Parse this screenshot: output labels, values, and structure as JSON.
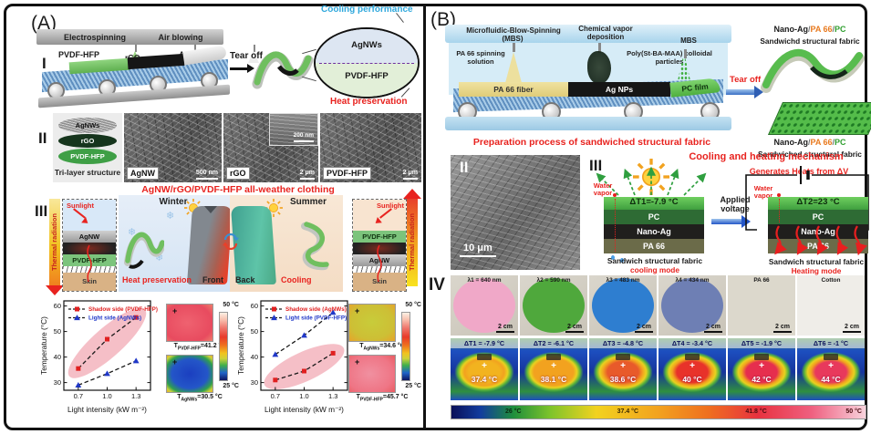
{
  "panelA": {
    "label": "(A)",
    "sec1": {
      "roman": "I",
      "machine": {
        "electrospinning": "Electrospinning",
        "air_blowing": "Air blowing",
        "pvdf": "PVDF-HFP",
        "rgo": "rGO",
        "agnws": "AgNWs"
      },
      "tear_off": "Tear off",
      "callout": {
        "cooling": "Cooling performance",
        "top": "AgNWs",
        "bottom": "PVDF-HFP",
        "heat": "Heat preservation"
      }
    },
    "sec2": {
      "roman": "II",
      "trilayer": {
        "layers": [
          "AgNWs",
          "rGO",
          "PVDF-HFP"
        ],
        "caption": "Tri-layer structure"
      },
      "sems": [
        {
          "label": "AgNW",
          "scale": "500 nm"
        },
        {
          "label": "rGO",
          "scale": "2 μm",
          "inset": "200 nm"
        },
        {
          "label": "PVDF-HFP",
          "scale": "2 μm"
        }
      ],
      "caption": "AgNW/rGO/PVDF-HFP all-weather clothing"
    },
    "sec3": {
      "roman": "III",
      "left": {
        "thermal": "Thermal radiation",
        "sunlight": "Sunlight",
        "layer1": "AgNW",
        "layer2": "PVDF-HFP",
        "skin": "Skin"
      },
      "winter": {
        "title": "Winter",
        "caption": "Heat preservation",
        "side": "Front"
      },
      "summer": {
        "title": "Summer",
        "side": "Back",
        "caption": "Cooling"
      },
      "right": {
        "thermal": "Thermal radiation",
        "sunlight": "Sunlight",
        "layer1": "PVDF-HFP",
        "layer2": "AgNW",
        "skin": "Skin"
      }
    },
    "thermal_sets": [
      {
        "top": {
          "prefix": "T",
          "sub": "PVDF-HFP",
          "value": "=41.2 °C"
        },
        "bottom": {
          "prefix": "T",
          "sub": "AgNWs",
          "value": "=30.5 °C"
        },
        "scale_top": "50 °C",
        "scale_bottom": "25 °C"
      },
      {
        "top": {
          "prefix": "T",
          "sub": "AgNWs",
          "value": "=34.6 °C"
        },
        "bottom": {
          "prefix": "T",
          "sub": "PVDF-HFP",
          "value": "=45.7 °C"
        },
        "scale_top": "50 °C",
        "scale_bottom": "25 °C"
      }
    ]
  },
  "panelB": {
    "label": "(B)",
    "sec1": {
      "roman": "I",
      "mbs_title": "Microfluidic-Blow-Spinning",
      "mbs_sub": "(MBS)",
      "cvd": "Chemical vapor deposition",
      "mbs2": "MBS",
      "pa66_solution": "PA 66 spinning solution",
      "colloid": "Poly(St-BA-MAA) colloidal particles",
      "belt": [
        "PA 66 fiber",
        "Ag NPs",
        "PC film"
      ],
      "tear_off": "Tear off",
      "fabric": {
        "nano": "Nano-Ag",
        "slash1": "/",
        "pa": "PA 66",
        "slash2": "/",
        "pc": "PC"
      },
      "fabric_top_caption": "Sandwichd structural fabric",
      "fabric_bottom_caption": "Sandwiched structural fabric",
      "caption": "Preparation process of sandwiched structural fabric"
    },
    "sec2": {
      "roman": "II",
      "scale": "10 μm"
    },
    "sec3": {
      "roman": "III",
      "title": "Cooling and heating mechanism",
      "generates": "Generates Heats from ΔV",
      "cool": {
        "water": "Water vapor",
        "dt": "ΔT1=-7.9 °C",
        "layers": [
          "PC",
          "Nano-Ag",
          "PA 66"
        ],
        "caption": "Sandwich structural fabric",
        "mode": "cooling mode"
      },
      "applied": "Applied voltage",
      "heat": {
        "water": "Water vapor",
        "dt": "ΔT2=23 °C",
        "layers": [
          "PC",
          "Nano-Ag",
          "PA 66"
        ],
        "caption": "Sandwich structural fabric",
        "mode": "Heating mode"
      }
    },
    "sec4": {
      "roman": "IV",
      "samples": [
        {
          "label": "λ1 = 640 nm",
          "scale": "2 cm",
          "color": "#f0a8c8"
        },
        {
          "label": "λ2 = 590 nm",
          "scale": "2 cm",
          "color": "#4fa83c"
        },
        {
          "label": "λ3 = 483 nm",
          "scale": "2 cm",
          "color": "#2e7ed0"
        },
        {
          "label": "λ4 = 434 nm",
          "scale": "2 cm",
          "color": "#6e7fb4"
        },
        {
          "label": "PA 66",
          "scale": "2 cm",
          "color": "#dcd8cc",
          "flat": true
        },
        {
          "label": "Cotton",
          "scale": "2 cm",
          "color": "#efede8",
          "flat": true
        }
      ],
      "thermals": [
        {
          "dt": "ΔT1 = -7.9 °C",
          "temp": "37.4 °C",
          "spot": "#f2b31f"
        },
        {
          "dt": "ΔT2 = -6.1 °C",
          "temp": "38.1 °C",
          "spot": "#f2a21f"
        },
        {
          "dt": "ΔT3 = -4.8 °C",
          "temp": "38.6 °C",
          "spot": "#e85a2a"
        },
        {
          "dt": "ΔT4 = -3.4 °C",
          "temp": "40 °C",
          "spot": "#e8322a"
        },
        {
          "dt": "ΔT5 = -1.9 °C",
          "temp": "42 °C",
          "spot": "#e62e4e"
        },
        {
          "dt": "ΔT6 = -1 °C",
          "temp": "44 °C",
          "spot": "#e8395c"
        }
      ],
      "colorbar": {
        "labels": [
          "26 °C",
          "37.4 °C",
          "41.8 °C",
          "50 °C"
        ]
      }
    }
  },
  "icons": {
    "snowflake": "❄",
    "crosshair": "+"
  },
  "chart_data": [
    {
      "type": "scatter",
      "x": [
        0.7,
        1.0,
        1.3
      ],
      "xticks": [
        "0.7",
        "1.0",
        "1.3"
      ],
      "yticks": [
        30,
        40,
        50,
        60
      ],
      "ylim": [
        27,
        62
      ],
      "xlabel": "Light intensity (kW m⁻²)",
      "ylabel": "Temperature (°C)",
      "series": [
        {
          "name": "Shadow side (PVDF-HFP)",
          "marker": "square",
          "color": "#e02020",
          "values": [
            35.5,
            47.0,
            55.5
          ],
          "highlighted": true
        },
        {
          "name": "Light side (AgNWs)",
          "marker": "triangle",
          "color": "#2038c8",
          "values": [
            29.0,
            33.5,
            38.5
          ],
          "highlighted": false
        }
      ],
      "line_color": "#1a1a1a",
      "highlight_color": "#f2aab4",
      "legend_position": "top-left",
      "grid": false
    },
    {
      "type": "scatter",
      "x": [
        0.7,
        1.0,
        1.3
      ],
      "xticks": [
        "0.7",
        "1.0",
        "1.3"
      ],
      "yticks": [
        30,
        40,
        50,
        60
      ],
      "ylim": [
        27,
        62
      ],
      "xlabel": "Light intensity (kW m⁻²)",
      "ylabel": "Temperature (°C)",
      "series": [
        {
          "name": "Shadow side (AgNWs)",
          "marker": "square",
          "color": "#e02020",
          "values": [
            31.0,
            34.5,
            41.5
          ],
          "highlighted": true
        },
        {
          "name": "Light side (PVDF-HFP)",
          "marker": "triangle",
          "color": "#2038c8",
          "values": [
            41.0,
            48.5,
            57.5
          ],
          "highlighted": false
        }
      ],
      "line_color": "#1a1a1a",
      "highlight_color": "#f2aab4",
      "legend_position": "top-left",
      "grid": false
    }
  ]
}
